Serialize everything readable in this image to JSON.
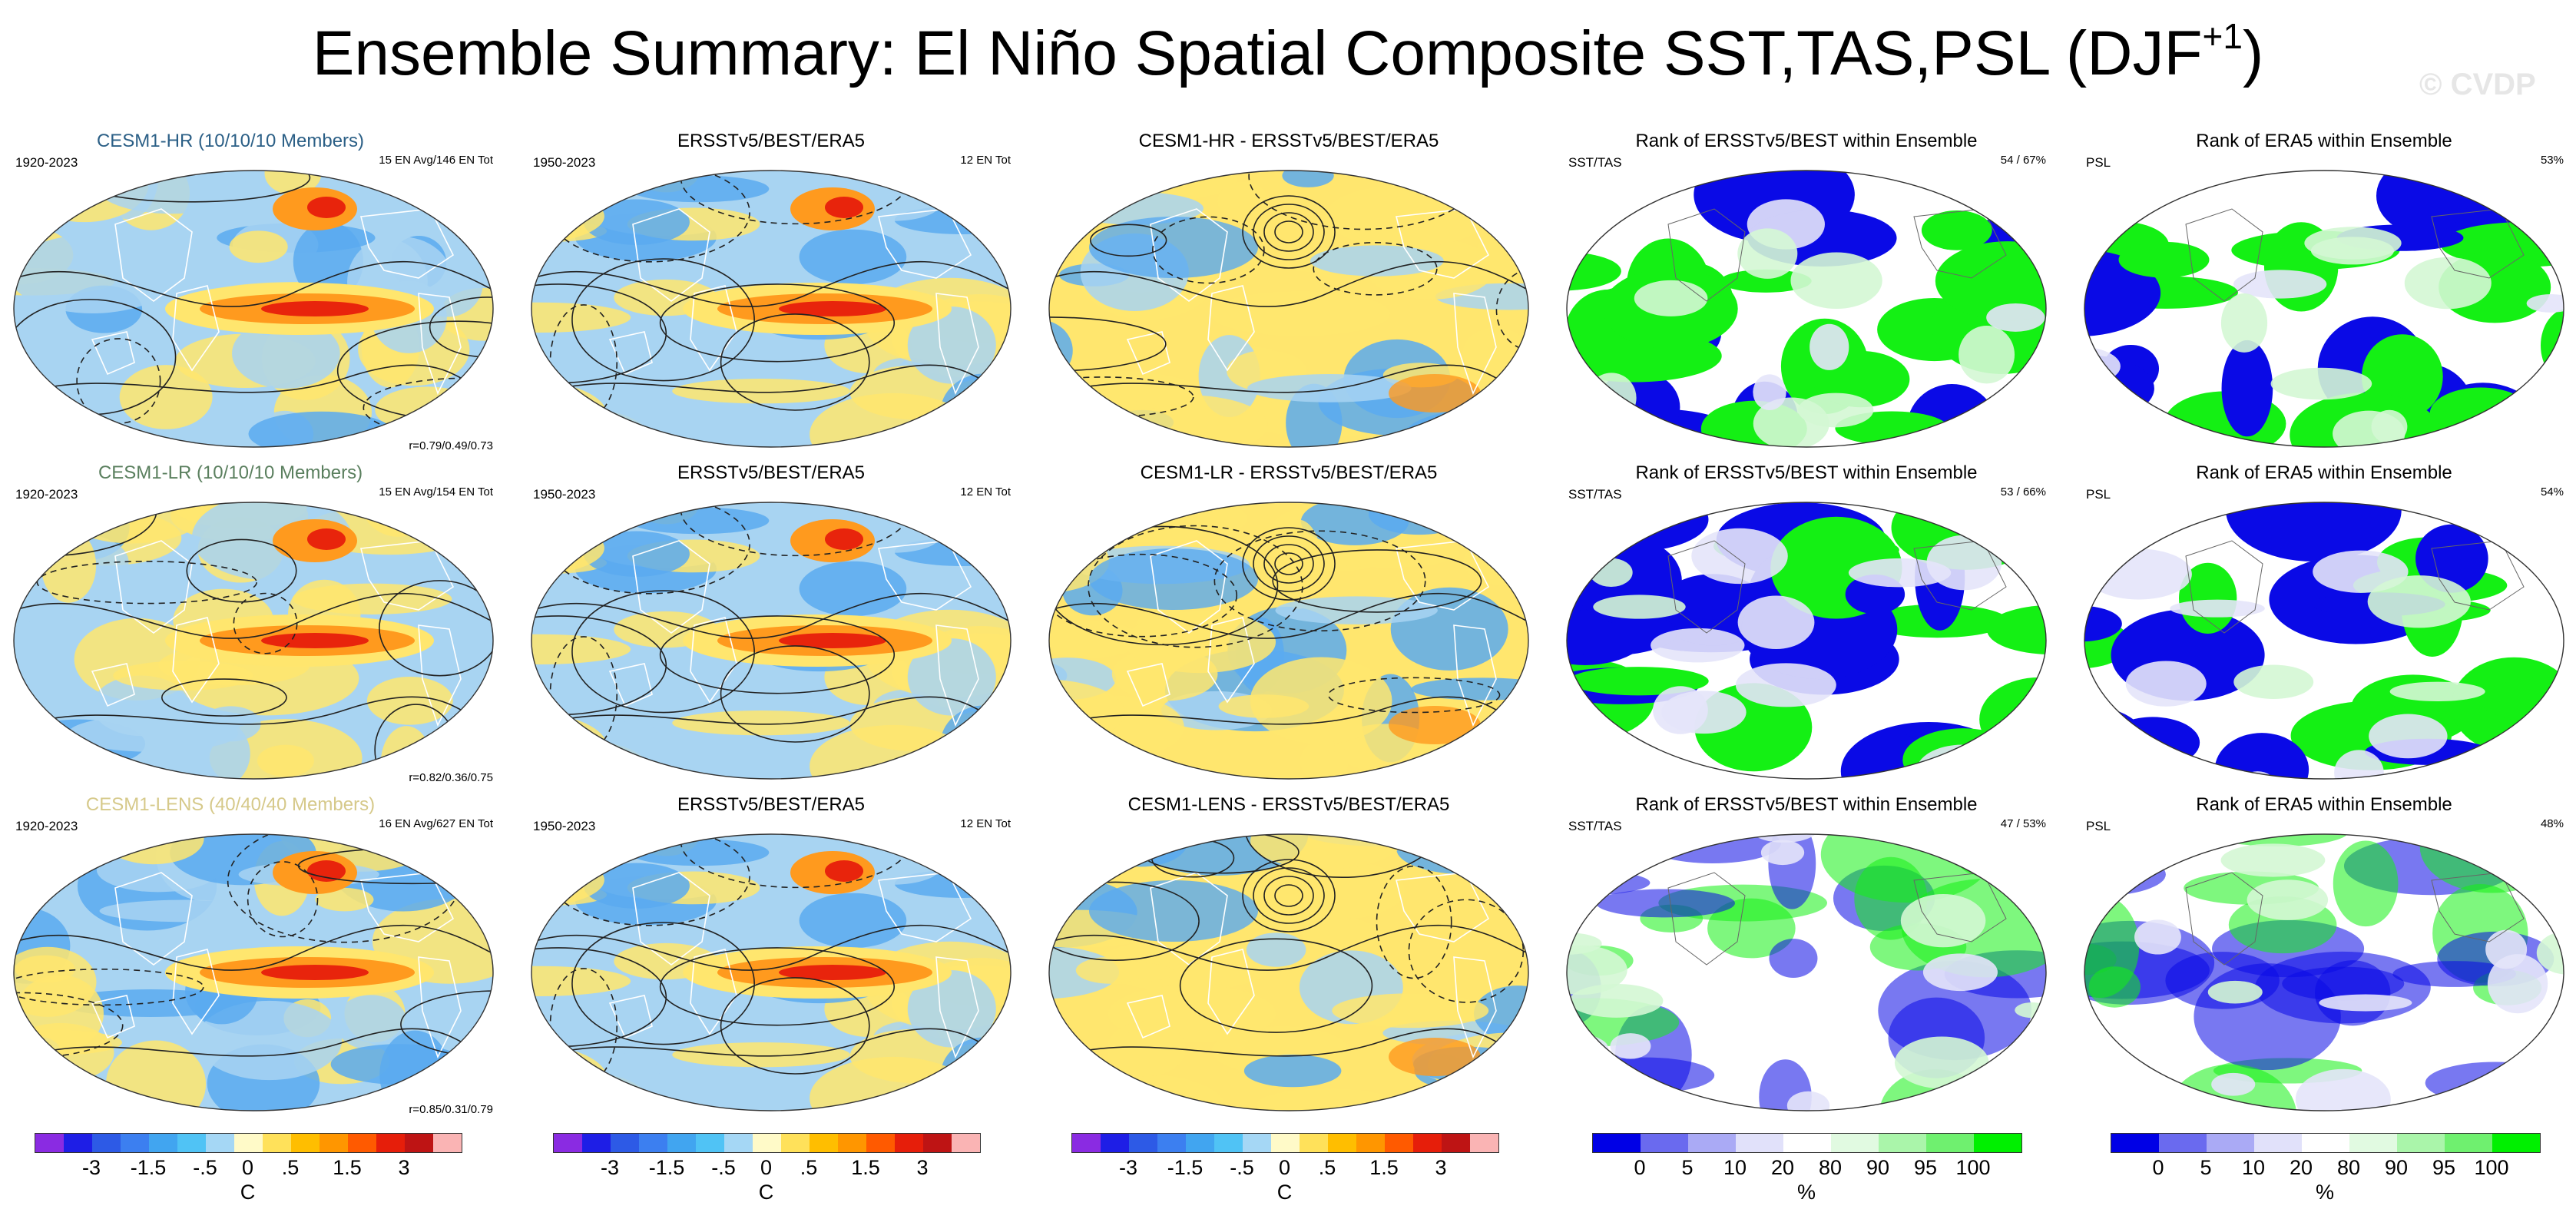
{
  "figure": {
    "title_main": "Ensemble Summary: El Niño Spatial Composite SST,TAS,PSL (DJF",
    "title_sup": "+1",
    "title_close": ")",
    "watermark": "© CVDP"
  },
  "rows": [
    {
      "model_label": "CESM1-HR (10/10/10 Members)",
      "model_color": "#2b5f86",
      "model_years": "1920-2023",
      "model_events": "15 EN Avg/146 EN Tot",
      "model_corr": "r=0.79/0.49/0.73",
      "obs_title": "ERSSTv5/BEST/ERA5",
      "obs_years": "1950-2023",
      "obs_events": "12 EN Tot",
      "diff_title": "CESM1-HR - ERSSTv5/BEST/ERA5",
      "rank1_title": "Rank of ERSSTv5/BEST within Ensemble",
      "rank1_var": "SST/TAS",
      "rank1_pct": "54 /  67%",
      "rank2_title": "Rank of ERA5 within Ensemble",
      "rank2_var": "PSL",
      "rank2_pct": "53%"
    },
    {
      "model_label": "CESM1-LR (10/10/10 Members)",
      "model_color": "#5a7f5e",
      "model_years": "1920-2023",
      "model_events": "15 EN Avg/154 EN Tot",
      "model_corr": "r=0.82/0.36/0.75",
      "obs_title": "ERSSTv5/BEST/ERA5",
      "obs_years": "1950-2023",
      "obs_events": "12 EN Tot",
      "diff_title": "CESM1-LR - ERSSTv5/BEST/ERA5",
      "rank1_title": "Rank of ERSSTv5/BEST within Ensemble",
      "rank1_var": "SST/TAS",
      "rank1_pct": "53 /  66%",
      "rank2_title": "Rank of ERA5 within Ensemble",
      "rank2_var": "PSL",
      "rank2_pct": "54%"
    },
    {
      "model_label": "CESM1-LENS (40/40/40 Members)",
      "model_color": "#d6c98a",
      "model_years": "1920-2023",
      "model_events": "16 EN Avg/627 EN Tot",
      "model_corr": "r=0.85/0.31/0.79",
      "obs_title": "ERSSTv5/BEST/ERA5",
      "obs_years": "1950-2023",
      "obs_events": "12 EN Tot",
      "diff_title": "CESM1-LENS - ERSSTv5/BEST/ERA5",
      "rank1_title": "Rank of ERSSTv5/BEST within Ensemble",
      "rank1_var": "SST/TAS",
      "rank1_pct": "47 /  53%",
      "rank2_title": "Rank of ERA5 within Ensemble",
      "rank2_var": "PSL",
      "rank2_pct": "48%"
    }
  ],
  "colorbars": {
    "anomaly": {
      "unit": "C",
      "ticks": [
        "-3",
        "-1.5",
        "-.5",
        "0",
        ".5",
        "1.5",
        "3"
      ],
      "colors": [
        "#8a2be2",
        "#1e1ee6",
        "#2d5ae6",
        "#3c7ff0",
        "#41a5f0",
        "#50c3f5",
        "#a5d7f5",
        "#fffac8",
        "#ffe15a",
        "#ffbe00",
        "#ff9600",
        "#ff5a00",
        "#e61e0a",
        "#be1414",
        "#fab4b4"
      ]
    },
    "rank": {
      "unit": "%",
      "ticks": [
        "0",
        "5",
        "10",
        "20",
        "80",
        "90",
        "95",
        "100"
      ],
      "colors": [
        "#0000e6",
        "#6a6aef",
        "#aaaaf5",
        "#e1e1fa",
        "#ffffff",
        "#e1fae1",
        "#aaf5aa",
        "#6ff06f",
        "#00f000"
      ]
    }
  },
  "palette": {
    "ocean_base": "#a8d4f2",
    "warm": "#ffe66e",
    "warm_strong": "#ff9a1e",
    "hot": "#e8240c",
    "cool": "#5aaaf0",
    "rank_blue": "#0a0ae6",
    "rank_green": "#14f014",
    "rank_pale_green": "#d4f7d4",
    "rank_pale_blue": "#e4e4fa"
  }
}
